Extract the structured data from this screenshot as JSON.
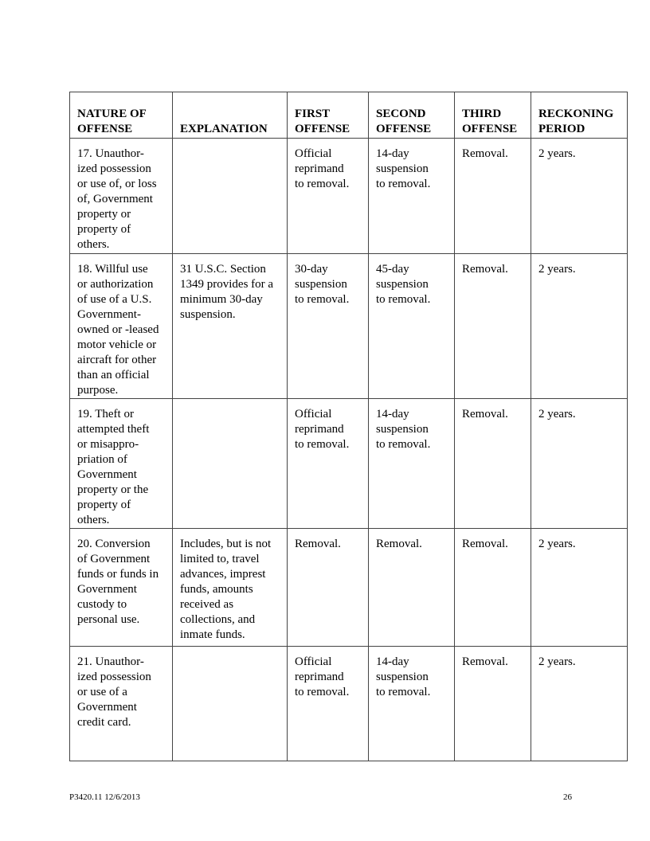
{
  "table": {
    "headers": [
      "NATURE OF\nOFFENSE",
      "EXPLANATION",
      "FIRST\nOFFENSE",
      "SECOND\nOFFENSE",
      "THIRD\nOFFENSE",
      "RECKONING\nPERIOD"
    ],
    "rows": [
      [
        "17. Unauthor-\nized possession\nor use of, or loss\nof, Government\nproperty or\nproperty of\nothers.",
        "",
        "Official\nreprimand\nto removal.",
        "14-day\nsuspension\nto removal.",
        "Removal.",
        "2 years."
      ],
      [
        "18. Willful use\nor authorization\nof use of a U.S.\nGovernment-\nowned or -leased\nmotor vehicle or\naircraft for other\nthan an official\npurpose.",
        "31 U.S.C. Section\n1349 provides for a\nminimum 30-day\nsuspension.",
        "30-day\nsuspension\nto removal.",
        "45-day\nsuspension\nto removal.",
        "Removal.",
        "2 years."
      ],
      [
        "19. Theft or\nattempted theft\nor misappro-\npriation of\nGovernment\nproperty or the\nproperty of\nothers.",
        "",
        "Official\nreprimand\nto removal.",
        "14-day\nsuspension\nto removal.",
        "Removal.",
        "2 years."
      ],
      [
        "20. Conversion\nof Government\nfunds or funds in\nGovernment\ncustody to\npersonal use.",
        "Includes, but is not\nlimited to, travel\nadvances, imprest\nfunds, amounts\nreceived as\ncollections, and\ninmate funds.",
        "Removal.",
        "Removal.",
        "Removal.",
        "2 years."
      ],
      [
        "21. Unauthor-\nized possession\nor use of a\nGovernment\ncredit card.",
        "",
        "Official\nreprimand\nto removal.",
        "14-day\nsuspension\nto removal.",
        "Removal.",
        "2 years."
      ]
    ]
  },
  "footer": {
    "doc_id": "P3420.11   12/6/2013",
    "page_number": "26"
  }
}
